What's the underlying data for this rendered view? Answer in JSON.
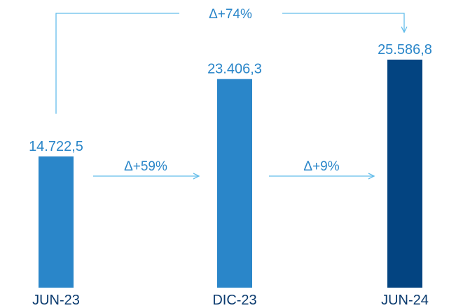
{
  "chart_data": {
    "type": "bar",
    "categories": [
      "JUN-23",
      "DIC-23",
      "JUN-24"
    ],
    "values": [
      14722.5,
      23406.3,
      25586.8
    ],
    "value_labels": [
      "14.722,5",
      "23.406,3",
      "25.586,8"
    ],
    "bar_colors": [
      "#2a86c9",
      "#2a86c9",
      "#034481"
    ],
    "annotations": [
      {
        "text": "Δ+59%",
        "from": "JUN-23",
        "to": "DIC-23"
      },
      {
        "text": "Δ+9%",
        "from": "DIC-23",
        "to": "JUN-24"
      },
      {
        "text": "Δ+74%",
        "from": "JUN-23",
        "to": "JUN-24"
      }
    ],
    "grid": false,
    "legend": "none",
    "ylim": [
      0,
      25586.8
    ]
  },
  "colors": {
    "label_text": "#2a86c9",
    "category_text": "#0a3a6e",
    "arrow": "#63bdea",
    "background": "#ffffff"
  }
}
